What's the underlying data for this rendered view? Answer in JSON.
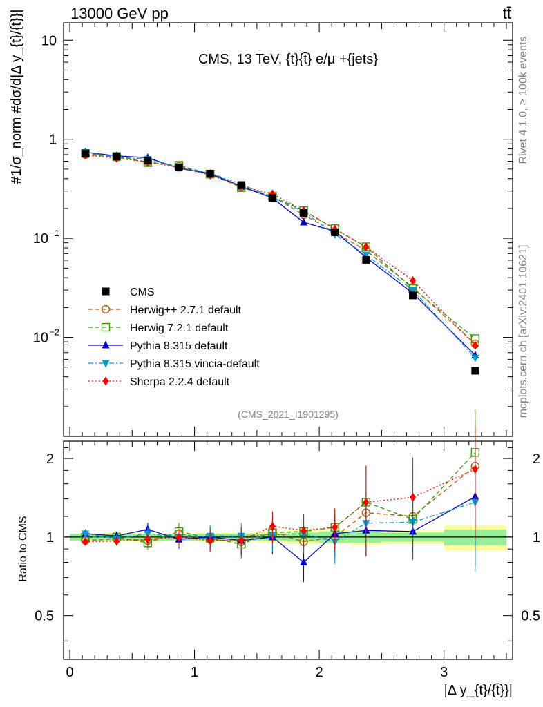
{
  "header": {
    "energy_label": "13000 GeV pp",
    "process_label": "tt̄",
    "rivet_label": "Rivet 4.1.0, ≥ 100k events",
    "mcplots_label": "mcplots.cern.ch [arXiv:2401.10621]",
    "analysis_id": "(CMS_2021_I1901295)"
  },
  "chart_data": {
    "type": "line",
    "title": "CMS, 13 TeV, {t}{t̄} e/μ +{jets}",
    "xlabel": "|Δ y_{t}/{t̄}}|",
    "ylabel": "#1/σ_norm #dσ/d|Δ y_{t}/{t̄}}|",
    "ratio_ylabel": "Ratio to CMS",
    "xlim": [
      -0.05,
      3.55
    ],
    "ylim": [
      0.001,
      15
    ],
    "ratio_ylim": [
      0.34,
      2.33
    ],
    "x_ticks": [
      0,
      1,
      2,
      3
    ],
    "x_tick_labels": [
      "0",
      "1",
      "2",
      "3"
    ],
    "main_y_tick_labels": [
      "10",
      "1",
      "10⁻¹",
      "10⁻²"
    ],
    "ratio_y_ticks": [
      0.5,
      1,
      2
    ],
    "ratio_y_tick_labels": [
      "0.5",
      "1",
      "2"
    ],
    "bin_edges": [
      0,
      0.25,
      0.5,
      0.75,
      1.0,
      1.25,
      1.5,
      1.75,
      2.0,
      2.25,
      2.5,
      3.0,
      3.5
    ],
    "x": [
      0.125,
      0.375,
      0.625,
      0.875,
      1.125,
      1.375,
      1.625,
      1.875,
      2.125,
      2.375,
      2.75,
      3.25
    ],
    "data": {
      "name": "CMS",
      "values": [
        0.72,
        0.67,
        0.61,
        0.52,
        0.45,
        0.345,
        0.255,
        0.18,
        0.115,
        0.0605,
        0.0265,
        0.0046
      ],
      "band_inner": [
        0.03,
        0.03,
        0.03,
        0.03,
        0.03,
        0.03,
        0.03,
        0.04,
        0.05,
        0.05,
        0.04,
        0.07
      ],
      "band_outer": [
        0.03,
        0.04,
        0.04,
        0.03,
        0.04,
        0.04,
        0.05,
        0.06,
        0.06,
        0.07,
        0.06,
        0.11
      ]
    },
    "series": [
      {
        "name": "Herwig++ 2.7.1 default",
        "color": "#b35900",
        "dash": "6,4",
        "marker": "circle-open",
        "values": [
          0.7,
          0.66,
          0.59,
          0.535,
          0.44,
          0.33,
          0.265,
          0.173,
          0.115,
          0.075,
          0.032,
          0.0086
        ],
        "ratio": [
          0.97,
          0.985,
          0.97,
          1.03,
          0.98,
          0.96,
          1.04,
          0.96,
          1.0,
          1.24,
          1.2,
          1.87
        ]
      },
      {
        "name": "Herwig 7.2.1 default",
        "color": "#339900",
        "dash": "6,4",
        "marker": "square-open",
        "values": [
          0.72,
          0.67,
          0.58,
          0.545,
          0.445,
          0.325,
          0.265,
          0.19,
          0.125,
          0.082,
          0.031,
          0.0097
        ],
        "ratio": [
          1.0,
          1.0,
          0.95,
          1.05,
          0.99,
          0.94,
          1.04,
          1.05,
          1.09,
          1.36,
          1.17,
          2.11
        ]
      },
      {
        "name": "Pythia 8.315 default",
        "color": "#0000cc",
        "dash": "",
        "marker": "triangle-up",
        "values": [
          0.74,
          0.68,
          0.65,
          0.51,
          0.45,
          0.335,
          0.255,
          0.145,
          0.118,
          0.064,
          0.0279,
          0.0066
        ],
        "ratio": [
          1.03,
          1.01,
          1.07,
          0.98,
          1.0,
          0.97,
          1.0,
          0.8,
          1.03,
          1.06,
          1.05,
          1.43
        ]
      },
      {
        "name": "Pythia 8.315 vincia-default",
        "color": "#0099cc",
        "dash": "7,3,2,3",
        "marker": "triangle-down",
        "values": [
          0.74,
          0.66,
          0.63,
          0.52,
          0.455,
          0.35,
          0.26,
          0.185,
          0.11,
          0.068,
          0.03,
          0.0062
        ],
        "ratio": [
          1.03,
          0.985,
          1.03,
          1.0,
          1.01,
          1.01,
          1.02,
          1.03,
          0.96,
          1.13,
          1.14,
          1.36
        ]
      },
      {
        "name": "Sherpa 2.2.4 default",
        "color": "#ff0000",
        "dash": "2,3",
        "marker": "diamond",
        "values": [
          0.69,
          0.645,
          0.59,
          0.52,
          0.435,
          0.335,
          0.28,
          0.19,
          0.123,
          0.082,
          0.0375,
          0.0083
        ],
        "ratio": [
          0.96,
          0.965,
          0.98,
          1.0,
          0.97,
          0.97,
          1.1,
          1.06,
          1.09,
          1.36,
          1.42,
          1.82
        ]
      }
    ]
  }
}
